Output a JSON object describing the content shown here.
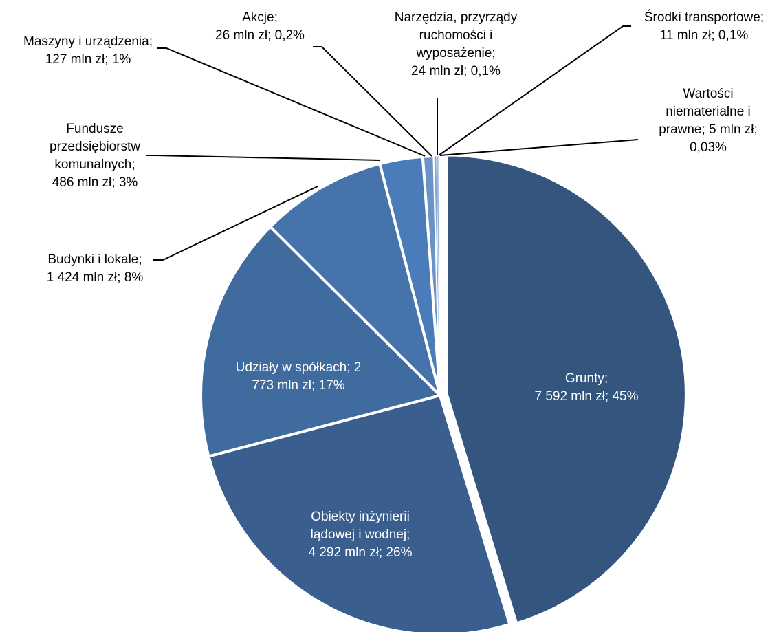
{
  "chart_data": {
    "type": "pie",
    "title": "",
    "unit": "mln zł",
    "slices": [
      {
        "name": "Grunty",
        "value": 7592,
        "percent": "45%",
        "color": "#34567E",
        "label_lines": [
          "Grunty;",
          "7 592 mln zł; 45%"
        ]
      },
      {
        "name": "Obiekty inżynierii lądowej i wodnej",
        "value": 4292,
        "percent": "26%",
        "color": "#3A5F8E",
        "label_lines": [
          "Obiekty inżynierii",
          "lądowej i wodnej;",
          "4 292 mln zł; 26%"
        ]
      },
      {
        "name": "Udziały w spółkach",
        "value": 2773,
        "percent": "17%",
        "color": "#3F6B9F",
        "label_lines": [
          "Udziały w spółkach; 2",
          "773 mln zł; 17%"
        ]
      },
      {
        "name": "Budynki i lokale",
        "value": 1424,
        "percent": "8%",
        "color": "#4673AB",
        "label_lines": [
          "Budynki i lokale;",
          "1 424 mln zł; 8%"
        ]
      },
      {
        "name": "Fundusze przedsiębiorstw komunalnych",
        "value": 486,
        "percent": "3%",
        "color": "#4B7CBA",
        "label_lines": [
          "Fundusze",
          "przedsiębiorstw",
          "komunalnych;",
          "486 mln zł; 3%"
        ]
      },
      {
        "name": "Maszyny i urządzenia",
        "value": 127,
        "percent": "1%",
        "color": "#6A93C9",
        "label_lines": [
          "Maszyny i urządzenia;",
          "127 mln zł; 1%"
        ]
      },
      {
        "name": "Akcje",
        "value": 26,
        "percent": "0,2%",
        "color": "#87A8D4",
        "label_lines": [
          "Akcje;",
          "26 mln zł; 0,2%"
        ]
      },
      {
        "name": "Narzędzia, przyrządy ruchomości i wyposażenie",
        "value": 24,
        "percent": "0,1%",
        "color": "#9DB8DC",
        "label_lines": [
          "Narzędzia, przyrządy",
          "ruchomości i",
          "wyposażenie;",
          "24 mln zł; 0,1%"
        ]
      },
      {
        "name": "Środki transportowe",
        "value": 11,
        "percent": "0,1%",
        "color": "#B5C9E5",
        "label_lines": [
          "Środki transportowe;",
          "11 mln zł; 0,1%"
        ]
      },
      {
        "name": "Wartości niematerialne i prawne",
        "value": 5,
        "percent": "0,03%",
        "color": "#CBD9EE",
        "label_lines": [
          "Wartości",
          "niematerialne i",
          "prawne; 5 mln zł;",
          "0,03%"
        ]
      }
    ],
    "legend": "none"
  }
}
